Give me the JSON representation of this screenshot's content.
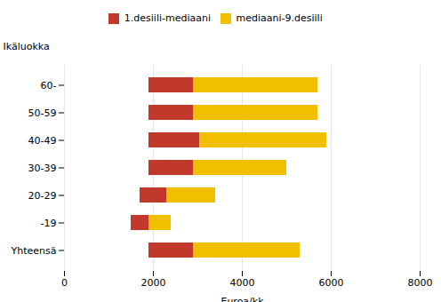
{
  "chart_data": {
    "type": "bar",
    "orientation": "horizontal",
    "categories": [
      "Yhteensä",
      "-19",
      "20-29",
      "30-39",
      "40-49",
      "50-59",
      "60-"
    ],
    "ylabel": "Ikäluokka",
    "xlabel": "Euroa/kk",
    "series": [
      {
        "name": "1.desiili-mediaani",
        "color": "#c0392b",
        "values": [
          [
            1900,
            2900
          ],
          [
            1500,
            1900
          ],
          [
            1700,
            2300
          ],
          [
            1900,
            2900
          ],
          [
            1900,
            3050
          ],
          [
            1900,
            2900
          ],
          [
            1900,
            2900
          ]
        ]
      },
      {
        "name": "mediaani-9.desiili",
        "color": "#f0c000",
        "values": [
          [
            2900,
            5300
          ],
          [
            1900,
            2400
          ],
          [
            2300,
            3400
          ],
          [
            2900,
            5000
          ],
          [
            3050,
            5900
          ],
          [
            2900,
            5700
          ],
          [
            2900,
            5700
          ]
        ]
      }
    ],
    "xlim": [
      0,
      8000
    ],
    "xticks": [
      0,
      2000,
      4000,
      6000,
      8000
    ],
    "grid": true,
    "legend": "top"
  }
}
